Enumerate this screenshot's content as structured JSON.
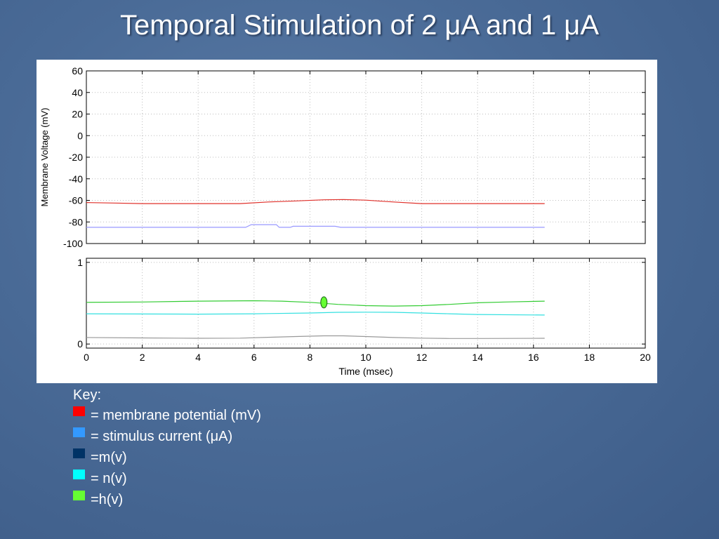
{
  "slide": {
    "title": "Temporal Stimulation of 2 μA and 1 μA"
  },
  "legend": {
    "key_title": "Key:",
    "items": [
      {
        "color": "#ff0000",
        "label": "= membrane potential (mV)"
      },
      {
        "color": "#3399ff",
        "label": "= stimulus current (μA)"
      },
      {
        "color": "#003366",
        "label": "=m(v)"
      },
      {
        "color": "#00ffff",
        "label": "= n(v)"
      },
      {
        "color": "#66ff33",
        "label": "=h(v)"
      }
    ]
  },
  "chart_data": [
    {
      "type": "line",
      "ylabel": "Membrane Voltage (mV)",
      "xlim": [
        0,
        20
      ],
      "ylim": [
        -100,
        60
      ],
      "yticks": [
        60,
        40,
        20,
        0,
        -20,
        -40,
        -60,
        -80,
        -100
      ],
      "xticks": [
        0,
        2,
        4,
        6,
        8,
        10,
        12,
        14,
        16,
        18,
        20
      ],
      "xticklabels_visible": false,
      "grid": true,
      "series": [
        {
          "color": "#e0302a",
          "x": [
            0,
            1,
            2,
            4,
            5.5,
            6.5,
            7.5,
            8.5,
            9.2,
            10,
            11,
            12,
            13,
            14,
            15,
            16.4
          ],
          "y": [
            -62,
            -62.5,
            -63,
            -63,
            -63,
            -61.5,
            -60.5,
            -59.5,
            -59.2,
            -59.8,
            -61.5,
            -63,
            -63,
            -63,
            -63,
            -63
          ]
        },
        {
          "color": "#9999ff",
          "x": [
            0,
            5.7,
            5.9,
            6.8,
            6.9,
            7.3,
            7.4,
            8.9,
            9.1,
            16.4
          ],
          "y": [
            -85,
            -85,
            -82.5,
            -82.5,
            -85,
            -85,
            -84,
            -84,
            -85,
            -85
          ]
        }
      ]
    },
    {
      "type": "line",
      "xlabel": "Time (msec)",
      "xlim": [
        0,
        20
      ],
      "ylim": [
        -0.05,
        1.05
      ],
      "yticks": [
        1,
        0
      ],
      "xticks": [
        0,
        2,
        4,
        6,
        8,
        10,
        12,
        14,
        16,
        18,
        20
      ],
      "grid": true,
      "series": [
        {
          "color": "#33cc33",
          "x": [
            0,
            2,
            4,
            6,
            7,
            8,
            9,
            10,
            11,
            12,
            13,
            14,
            15,
            16.4
          ],
          "y": [
            0.51,
            0.515,
            0.525,
            0.53,
            0.525,
            0.51,
            0.485,
            0.47,
            0.465,
            0.47,
            0.485,
            0.505,
            0.515,
            0.525
          ]
        },
        {
          "color": "#33e0e0",
          "x": [
            0,
            2,
            4,
            6,
            8,
            9,
            10,
            11,
            12,
            13,
            14,
            16.4
          ],
          "y": [
            0.37,
            0.368,
            0.366,
            0.37,
            0.38,
            0.388,
            0.39,
            0.388,
            0.38,
            0.37,
            0.362,
            0.355
          ]
        },
        {
          "color": "#999999",
          "x": [
            0,
            2,
            4,
            5.5,
            6.5,
            7.5,
            8.5,
            9.2,
            10,
            11,
            12,
            13,
            14,
            16.4
          ],
          "y": [
            0.08,
            0.075,
            0.07,
            0.072,
            0.082,
            0.092,
            0.1,
            0.1,
            0.092,
            0.08,
            0.072,
            0.068,
            0.068,
            0.07
          ]
        }
      ],
      "marker": {
        "x": 8.5,
        "y": 0.51,
        "shape": "ellipse",
        "color": "#66ff33"
      }
    }
  ]
}
